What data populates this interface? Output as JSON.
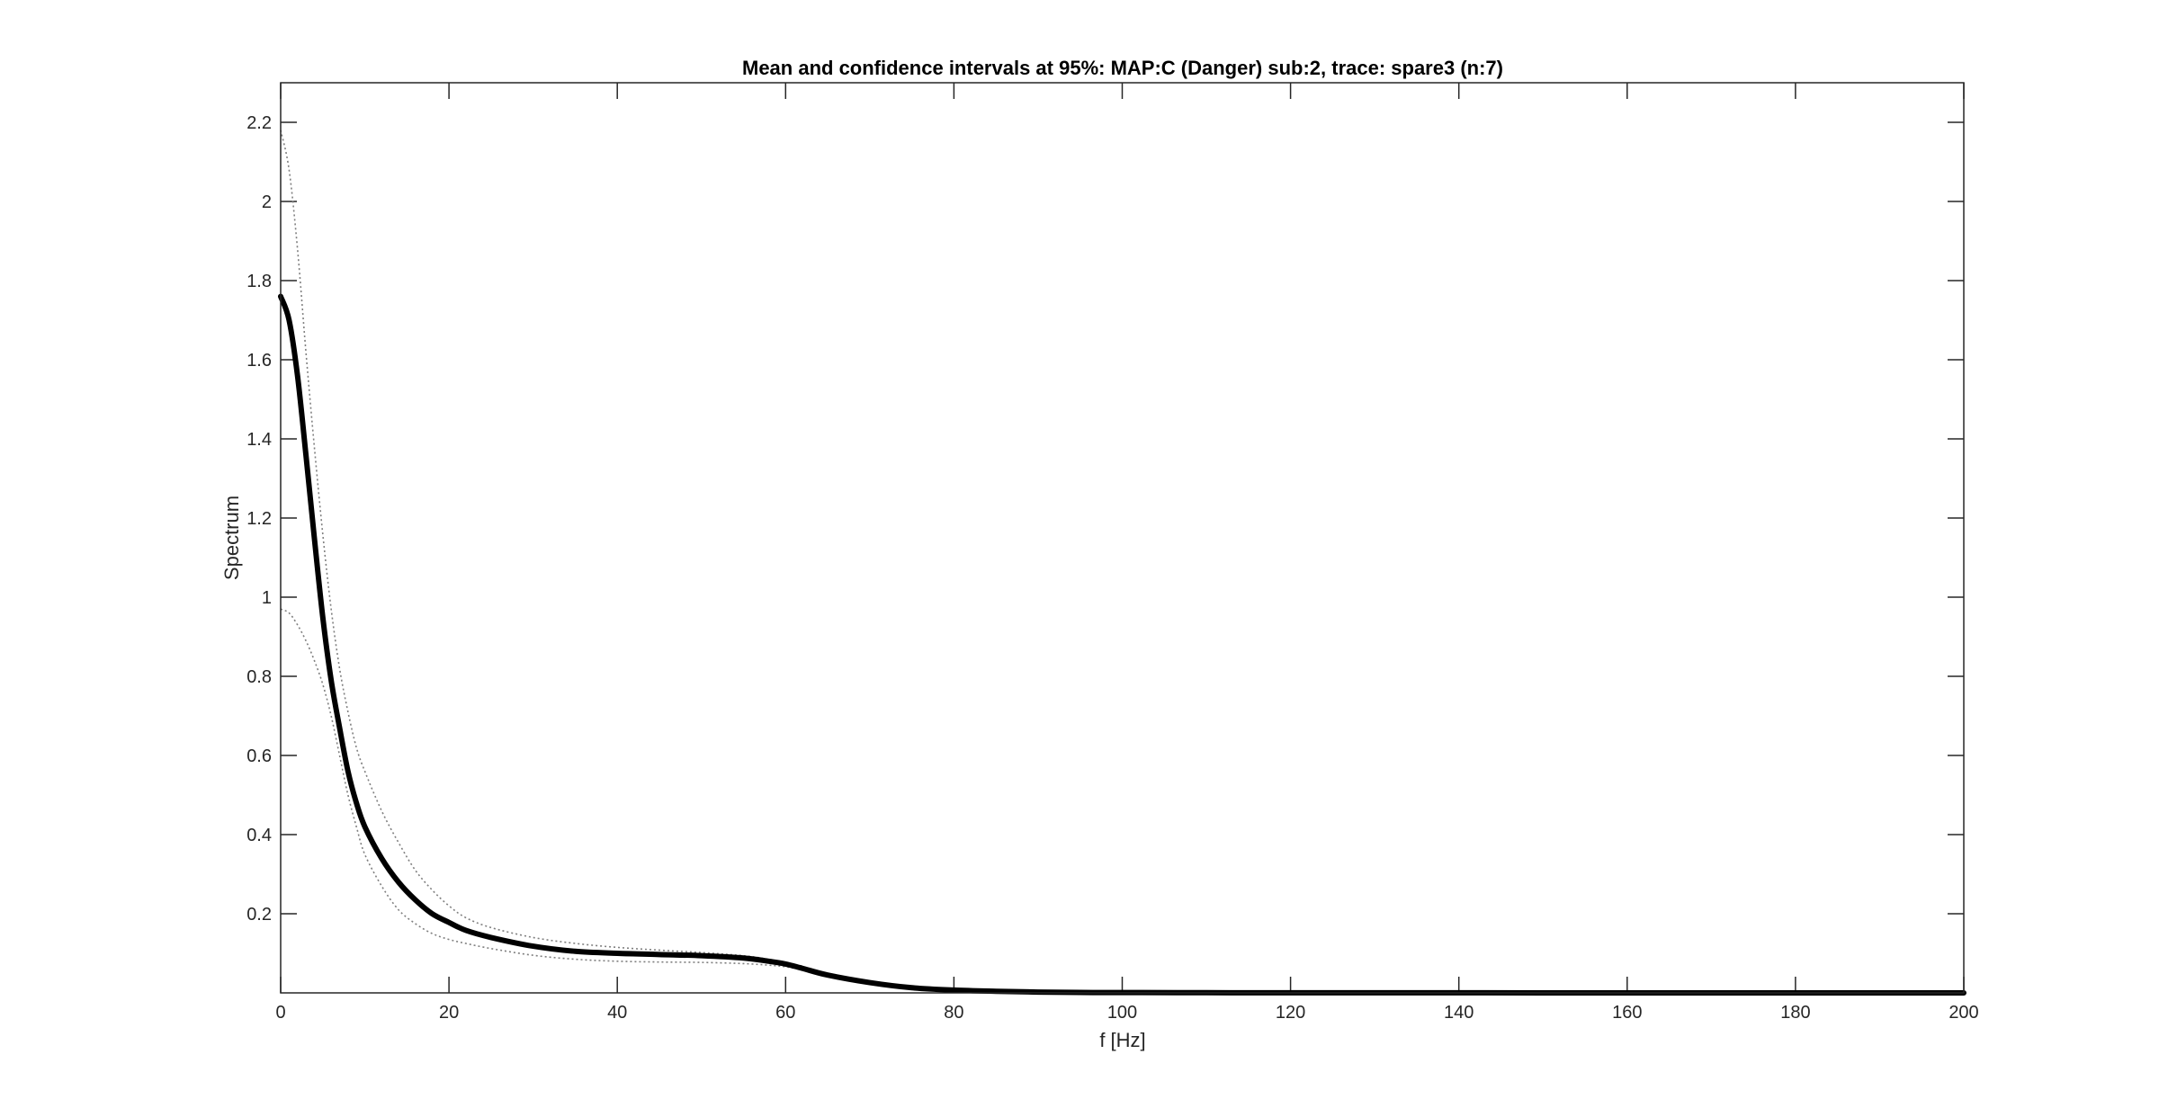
{
  "chart_data": {
    "type": "line",
    "title": "Mean and confidence intervals at 95%: MAP:C (Danger) sub:2, trace: spare3 (n:7)",
    "xlabel": "f [Hz]",
    "ylabel": "Spectrum",
    "xlim": [
      0,
      200
    ],
    "ylim": [
      0,
      2.3
    ],
    "xticks": [
      0,
      20,
      40,
      60,
      80,
      100,
      120,
      140,
      160,
      180,
      200
    ],
    "xtick_labels": [
      "0",
      "20",
      "40",
      "60",
      "80",
      "100",
      "120",
      "140",
      "160",
      "180",
      "200"
    ],
    "yticks": [
      0.2,
      0.4,
      0.6,
      0.8,
      1,
      1.2,
      1.4,
      1.6,
      1.8,
      2,
      2.2
    ],
    "ytick_labels": [
      "0.2",
      "0.4",
      "0.6",
      "0.8",
      "1",
      "1.2",
      "1.4",
      "1.6",
      "1.8",
      "2",
      "2.2"
    ],
    "grid": false,
    "x": [
      0,
      1,
      2,
      3,
      4,
      5,
      6,
      7,
      8,
      9,
      10,
      12,
      14,
      16,
      18,
      20,
      22,
      25,
      30,
      35,
      40,
      45,
      50,
      55,
      58,
      60,
      62,
      65,
      70,
      75,
      80,
      85,
      90,
      95,
      100,
      110,
      120,
      140,
      160,
      180,
      200
    ],
    "series": [
      {
        "role": "mean",
        "color": "#000000",
        "style": "solid",
        "values": [
          1.76,
          1.7,
          1.56,
          1.36,
          1.15,
          0.95,
          0.79,
          0.67,
          0.56,
          0.48,
          0.42,
          0.34,
          0.28,
          0.235,
          0.2,
          0.178,
          0.158,
          0.14,
          0.118,
          0.105,
          0.1,
          0.097,
          0.094,
          0.088,
          0.08,
          0.073,
          0.062,
          0.045,
          0.026,
          0.013,
          0.007,
          0.004,
          0.002,
          0.001,
          0.0008,
          0.0005,
          0.0003,
          0.0002,
          0.0001,
          0.0001,
          0.0001
        ]
      },
      {
        "role": "upper-ci",
        "color": "#7f7f7f",
        "style": "dotted",
        "values": [
          2.18,
          2.08,
          1.88,
          1.62,
          1.38,
          1.16,
          0.97,
          0.82,
          0.71,
          0.62,
          0.56,
          0.46,
          0.38,
          0.31,
          0.26,
          0.22,
          0.19,
          0.165,
          0.14,
          0.125,
          0.115,
          0.108,
          0.102,
          0.094,
          0.085,
          0.077,
          0.066,
          0.048,
          0.028,
          0.014,
          0.008,
          0.004,
          0.002,
          0.001,
          0.0008,
          0.0005,
          0.0003,
          0.0002,
          0.0001,
          0.0001,
          0.0001
        ]
      },
      {
        "role": "lower-ci",
        "color": "#7f7f7f",
        "style": "dotted",
        "values": [
          0.97,
          0.96,
          0.93,
          0.89,
          0.84,
          0.78,
          0.7,
          0.6,
          0.5,
          0.42,
          0.35,
          0.27,
          0.21,
          0.175,
          0.15,
          0.135,
          0.125,
          0.112,
          0.095,
          0.085,
          0.08,
          0.078,
          0.077,
          0.074,
          0.07,
          0.066,
          0.058,
          0.042,
          0.024,
          0.012,
          0.006,
          0.003,
          0.0015,
          0.001,
          0.0007,
          0.0004,
          0.0003,
          0.0002,
          0.0001,
          0.0001,
          0.0001
        ]
      }
    ]
  }
}
